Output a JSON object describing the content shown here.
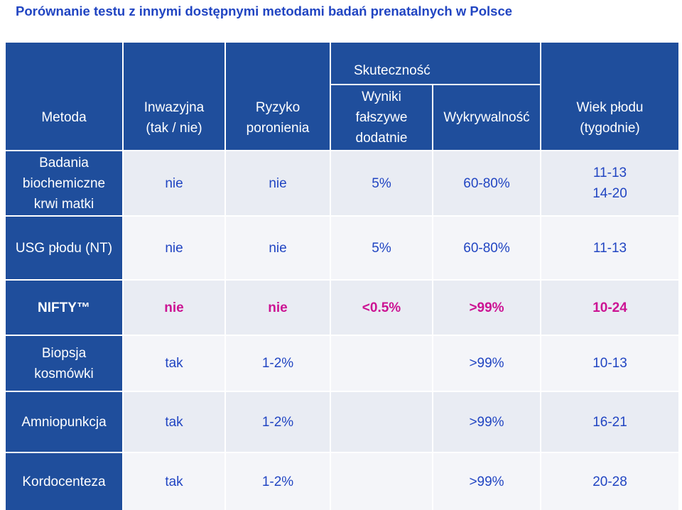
{
  "title": "Porównanie testu z innymi dostępnymi metodami badań prenatalnych w Polsce",
  "colors": {
    "title": "#2145c2",
    "header_bg": "#1f4e9c",
    "body_text": "#2145c2",
    "highlight_text": "#cc1393"
  },
  "table": {
    "headers": {
      "method": "Metoda",
      "invasive": "Inwazyjna\n(tak / nie)",
      "miscarriage_risk": "Ryzyko\nporonienia",
      "effectiveness": "Skuteczność",
      "false_positives": "Wyniki\nfałszywe\ndodatnie",
      "detection": "Wykrywalność",
      "fetal_age": "Wiek płodu\n(tygodnie)"
    },
    "rows": [
      {
        "method": "Badania\nbiochemiczne\nkrwi matki",
        "invasive": "nie",
        "miscarriage_risk": "nie",
        "false_positives": "5%",
        "detection": "60-80%",
        "fetal_age": "11-13\n14-20"
      },
      {
        "method": "USG płodu (NT)",
        "invasive": "nie",
        "miscarriage_risk": "nie",
        "false_positives": "5%",
        "detection": "60-80%",
        "fetal_age": "11-13"
      },
      {
        "method": "NIFTY™",
        "invasive": "nie",
        "miscarriage_risk": "nie",
        "false_positives": "<0.5%",
        "detection": ">99%",
        "fetal_age": "10-24"
      },
      {
        "method": "Biopsja\nkosmówki",
        "invasive": "tak",
        "miscarriage_risk": "1-2%",
        "false_positives": "",
        "detection": ">99%",
        "fetal_age": "10-13"
      },
      {
        "method": "Amniopunkcja",
        "invasive": "tak",
        "miscarriage_risk": "1-2%",
        "false_positives": "",
        "detection": ">99%",
        "fetal_age": "16-21"
      },
      {
        "method": "Kordocenteza",
        "invasive": "tak",
        "miscarriage_risk": "1-2%",
        "false_positives": "",
        "detection": ">99%",
        "fetal_age": "20-28"
      }
    ]
  }
}
